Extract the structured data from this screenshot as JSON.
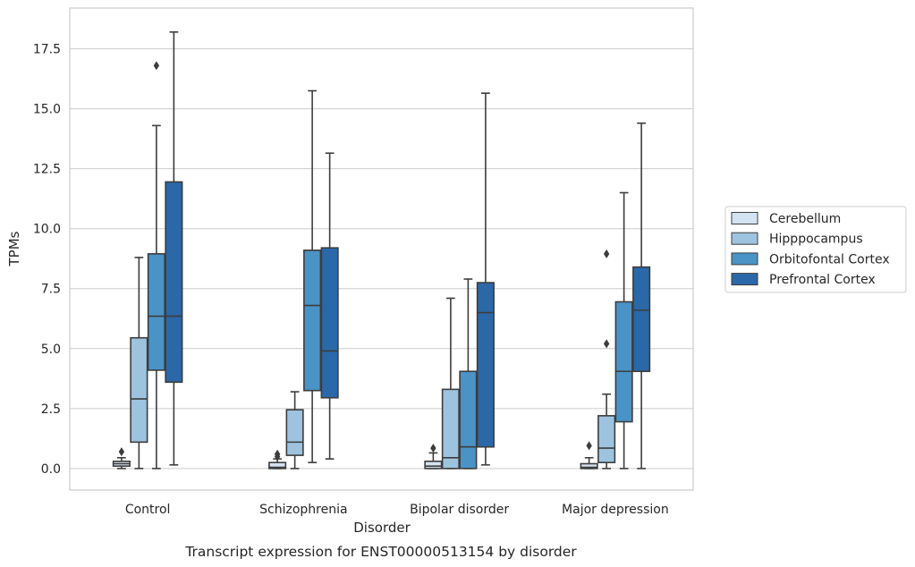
{
  "chart_data": {
    "type": "box",
    "xlabel": "Disorder",
    "ylabel": "TPMs",
    "caption": "Transcript expression for ENST00000513154 by disorder",
    "ylim": [
      -0.9,
      19.2
    ],
    "yticks": [
      0.0,
      2.5,
      5.0,
      7.5,
      10.0,
      12.5,
      15.0,
      17.5
    ],
    "ytick_labels": [
      "0.0",
      "2.5",
      "5.0",
      "7.5",
      "10.0",
      "12.5",
      "15.0",
      "17.5"
    ],
    "grid": "horizontal",
    "legend_position": "right",
    "categories": [
      "Control",
      "Schizophrenia",
      "Bipolar disorder",
      "Major depression"
    ],
    "series": [
      {
        "name": "Cerebellum",
        "color": "#d4e3f1",
        "boxes": [
          {
            "whisker_low": 0.0,
            "q1": 0.1,
            "median": 0.2,
            "q3": 0.3,
            "whisker_high": 0.45,
            "outliers": [
              0.7
            ]
          },
          {
            "whisker_low": 0.0,
            "q1": 0.0,
            "median": 0.05,
            "q3": 0.25,
            "whisker_high": 0.4,
            "outliers": [
              0.5,
              0.6
            ]
          },
          {
            "whisker_low": 0.0,
            "q1": 0.0,
            "median": 0.1,
            "q3": 0.3,
            "whisker_high": 0.65,
            "outliers": [
              0.85
            ]
          },
          {
            "whisker_low": 0.0,
            "q1": 0.0,
            "median": 0.05,
            "q3": 0.2,
            "whisker_high": 0.45,
            "outliers": [
              0.95
            ]
          }
        ]
      },
      {
        "name": "Hipppocampus",
        "color": "#9dc3df",
        "boxes": [
          {
            "whisker_low": 0.0,
            "q1": 1.1,
            "median": 2.9,
            "q3": 5.45,
            "whisker_high": 8.8,
            "outliers": []
          },
          {
            "whisker_low": 0.0,
            "q1": 0.55,
            "median": 1.1,
            "q3": 2.45,
            "whisker_high": 3.2,
            "outliers": []
          },
          {
            "whisker_low": 0.0,
            "q1": 0.0,
            "median": 0.45,
            "q3": 3.3,
            "whisker_high": 7.1,
            "outliers": []
          },
          {
            "whisker_low": 0.0,
            "q1": 0.25,
            "median": 0.85,
            "q3": 2.2,
            "whisker_high": 3.1,
            "outliers": [
              5.2,
              8.95
            ]
          }
        ]
      },
      {
        "name": "Orbitofontal Cortex",
        "color": "#4a93c6",
        "boxes": [
          {
            "whisker_low": 0.0,
            "q1": 4.1,
            "median": 6.35,
            "q3": 8.95,
            "whisker_high": 14.3,
            "outliers": [
              16.8
            ]
          },
          {
            "whisker_low": 0.25,
            "q1": 3.25,
            "median": 6.8,
            "q3": 9.1,
            "whisker_high": 15.75,
            "outliers": []
          },
          {
            "whisker_low": 0.0,
            "q1": 0.0,
            "median": 0.9,
            "q3": 4.05,
            "whisker_high": 7.9,
            "outliers": []
          },
          {
            "whisker_low": 0.0,
            "q1": 1.95,
            "median": 4.05,
            "q3": 6.95,
            "whisker_high": 11.5,
            "outliers": []
          }
        ]
      },
      {
        "name": "Prefrontal Cortex",
        "color": "#2a68a8",
        "boxes": [
          {
            "whisker_low": 0.15,
            "q1": 3.6,
            "median": 6.35,
            "q3": 11.95,
            "whisker_high": 18.2,
            "outliers": []
          },
          {
            "whisker_low": 0.4,
            "q1": 2.95,
            "median": 4.9,
            "q3": 9.2,
            "whisker_high": 13.15,
            "outliers": []
          },
          {
            "whisker_low": 0.15,
            "q1": 0.9,
            "median": 6.5,
            "q3": 7.75,
            "whisker_high": 15.65,
            "outliers": []
          },
          {
            "whisker_low": 0.0,
            "q1": 4.05,
            "median": 6.6,
            "q3": 8.4,
            "whisker_high": 14.4,
            "outliers": []
          }
        ]
      }
    ]
  }
}
